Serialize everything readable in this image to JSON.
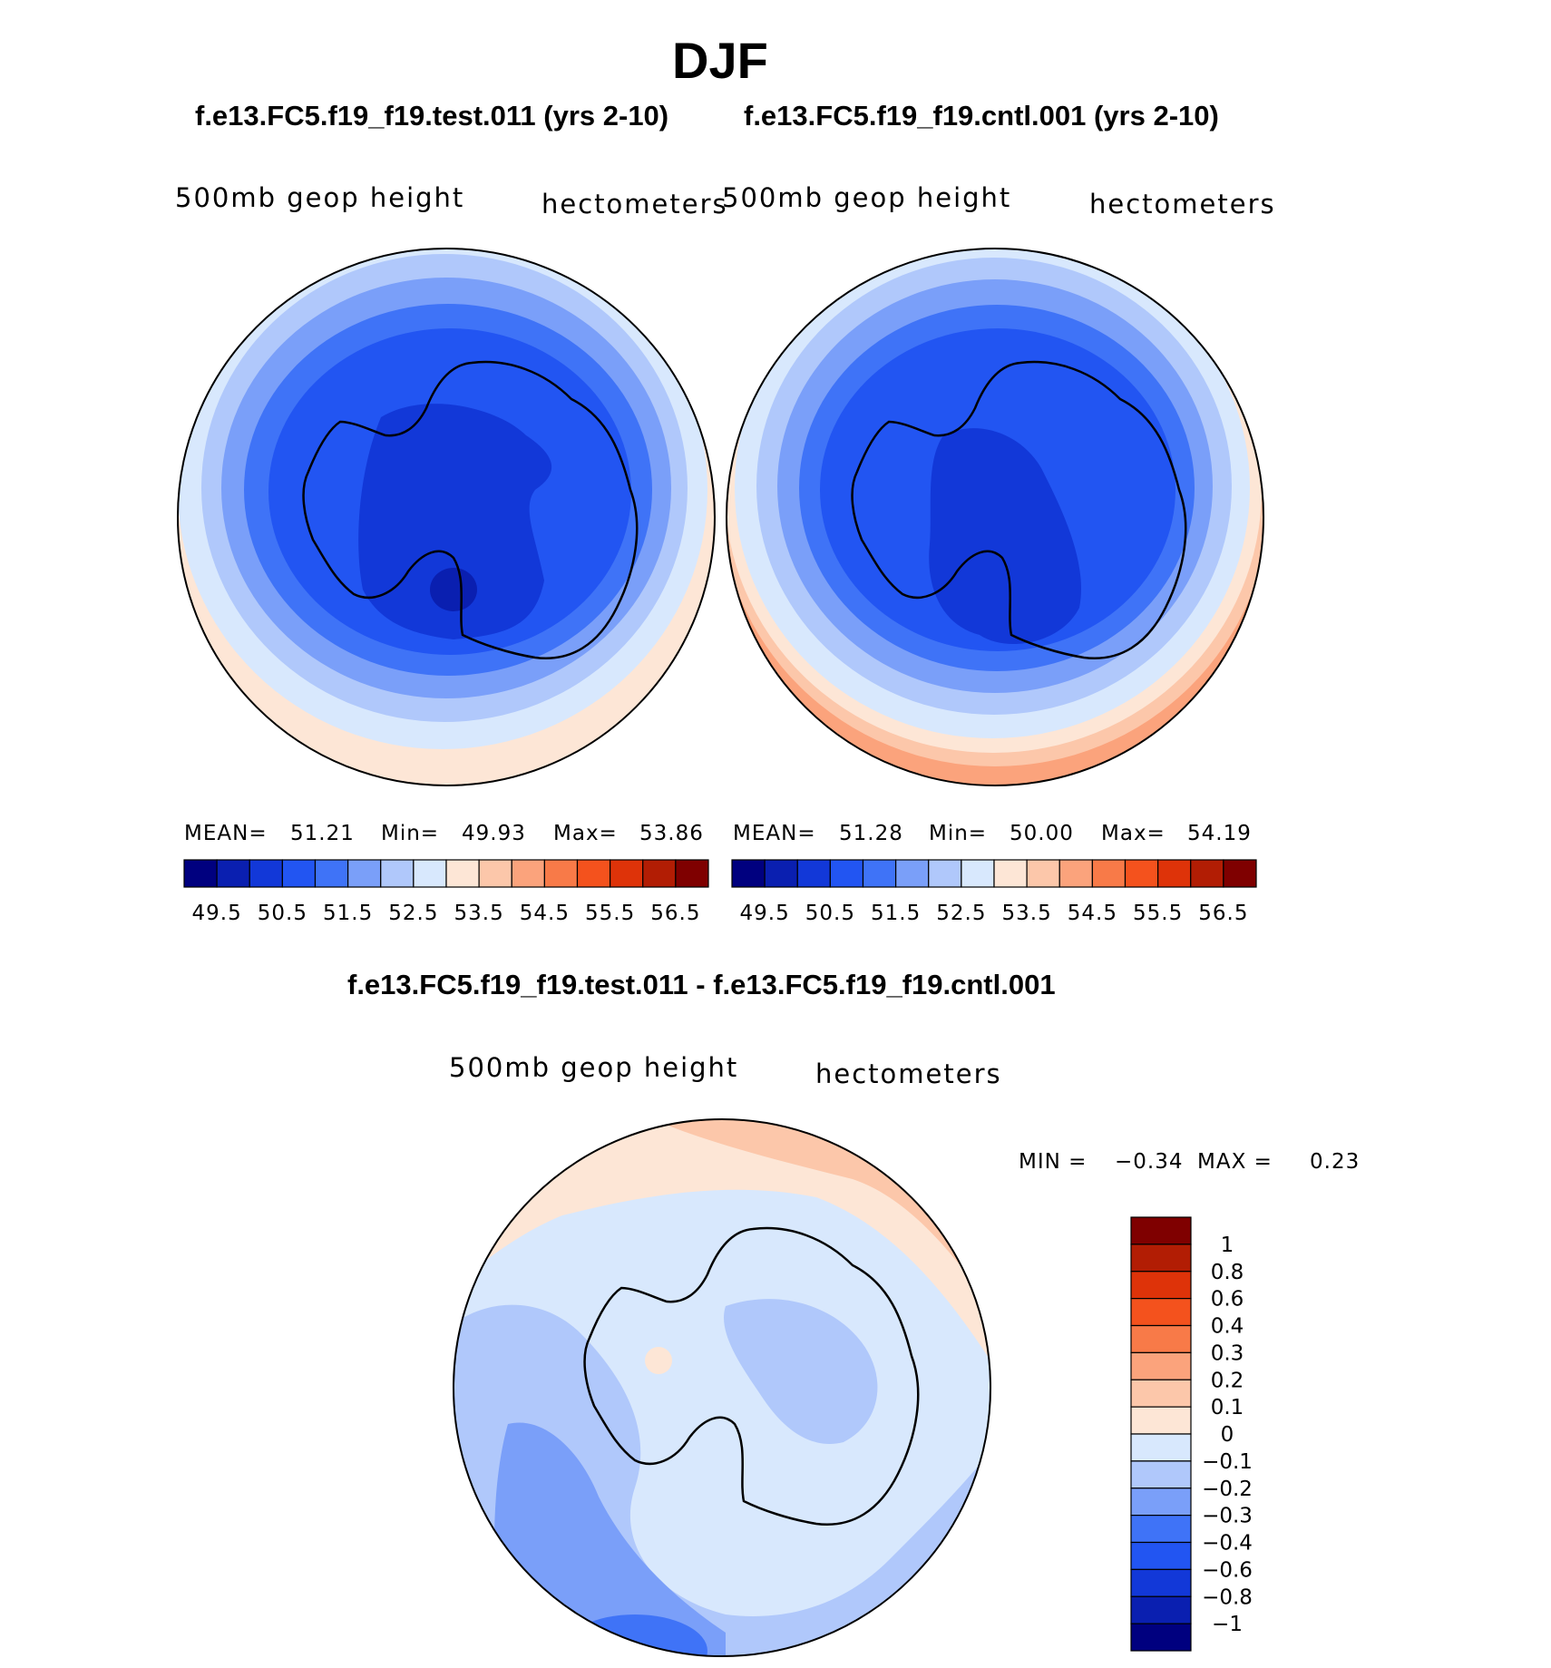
{
  "page_title": "DJF",
  "panels": {
    "test": {
      "case_title": "f.e13.FC5.f19_f19.test.011 (yrs 2-10)",
      "variable": "500mb geop height",
      "units": "hectometers",
      "stats": {
        "mean_label": "MEAN=",
        "mean": "51.21",
        "min_label": "Min=",
        "min": "49.93",
        "max_label": "Max=",
        "max": "53.86"
      }
    },
    "cntl": {
      "case_title": "f.e13.FC5.f19_f19.cntl.001 (yrs 2-10)",
      "variable": "500mb geop height",
      "units": "hectometers",
      "stats": {
        "mean_label": "MEAN=",
        "mean": "51.28",
        "min_label": "Min=",
        "min": "50.00",
        "max_label": "Max=",
        "max": "54.19"
      }
    },
    "diff": {
      "case_title": "f.e13.FC5.f19_f19.test.011 - f.e13.FC5.f19_f19.cntl.001",
      "variable": "500mb geop height",
      "units": "hectometers",
      "stats": {
        "min_label": "MIN =",
        "min": "−0.34",
        "max_label": "MAX =",
        "max": "0.23"
      }
    }
  },
  "chart_data": [
    {
      "type": "heatmap",
      "projection": "south polar stereographic",
      "title": "f.e13.FC5.f19_f19.test.011 (yrs 2-10)",
      "subtitle": "500mb geop height (hectometers)",
      "stats": {
        "mean": 51.21,
        "min": 49.93,
        "max": 53.86
      },
      "contour_levels": [
        49.5,
        50.0,
        50.5,
        51.0,
        51.5,
        52.0,
        52.5,
        53.0,
        53.5,
        54.0,
        54.5,
        55.0,
        55.5,
        56.0,
        56.5
      ],
      "colorbar_ticks": [
        "49.5",
        "50.5",
        "51.5",
        "52.5",
        "53.5",
        "54.5",
        "55.5",
        "56.5"
      ],
      "colors": [
        "#00007f",
        "#0a1fb0",
        "#1238d8",
        "#2255f2",
        "#3f73f7",
        "#7a9ff9",
        "#b0c8fb",
        "#d8e8fd",
        "#fde6d6",
        "#fcc7aa",
        "#fba37c",
        "#f87a48",
        "#f4521d",
        "#de3309",
        "#b21d04",
        "#7f0000"
      ]
    },
    {
      "type": "heatmap",
      "projection": "south polar stereographic",
      "title": "f.e13.FC5.f19_f19.cntl.001 (yrs 2-10)",
      "subtitle": "500mb geop height (hectometers)",
      "stats": {
        "mean": 51.28,
        "min": 50.0,
        "max": 54.19
      },
      "contour_levels": [
        49.5,
        50.0,
        50.5,
        51.0,
        51.5,
        52.0,
        52.5,
        53.0,
        53.5,
        54.0,
        54.5,
        55.0,
        55.5,
        56.0,
        56.5
      ],
      "colorbar_ticks": [
        "49.5",
        "50.5",
        "51.5",
        "52.5",
        "53.5",
        "54.5",
        "55.5",
        "56.5"
      ],
      "colors": [
        "#00007f",
        "#0a1fb0",
        "#1238d8",
        "#2255f2",
        "#3f73f7",
        "#7a9ff9",
        "#b0c8fb",
        "#d8e8fd",
        "#fde6d6",
        "#fcc7aa",
        "#fba37c",
        "#f87a48",
        "#f4521d",
        "#de3309",
        "#b21d04",
        "#7f0000"
      ]
    },
    {
      "type": "heatmap",
      "projection": "south polar stereographic",
      "title": "f.e13.FC5.f19_f19.test.011 - f.e13.FC5.f19_f19.cntl.001",
      "subtitle": "500mb geop height (hectometers)",
      "stats": {
        "min": -0.34,
        "max": 0.23
      },
      "colorbar_ticks": [
        "1",
        "0.8",
        "0.6",
        "0.4",
        "0.3",
        "0.2",
        "0.1",
        "0",
        "−0.1",
        "−0.2",
        "−0.3",
        "−0.4",
        "−0.6",
        "−0.8",
        "−1"
      ],
      "colors": [
        "#7f0000",
        "#b21d04",
        "#de3309",
        "#f4521d",
        "#f87a48",
        "#fba37c",
        "#fcc7aa",
        "#fde6d6",
        "#d8e8fd",
        "#b0c8fb",
        "#7a9ff9",
        "#3f73f7",
        "#2255f2",
        "#1238d8",
        "#0a1fb0",
        "#00007f"
      ]
    }
  ]
}
